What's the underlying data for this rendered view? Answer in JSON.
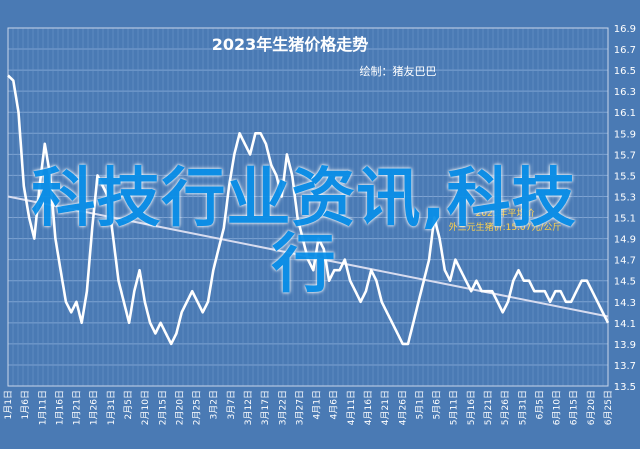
{
  "chart_data": {
    "type": "line",
    "title": "2023年生猪价格走势",
    "subtitle": "绘制：猪友巴巴",
    "xlabel": "",
    "ylabel": "",
    "ylim": [
      13.5,
      16.9
    ],
    "yticks": [
      "16.9",
      "16.7",
      "16.5",
      "16.3",
      "16.1",
      "15.9",
      "15.7",
      "15.5",
      "15.3",
      "15.1",
      "14.9",
      "14.7",
      "14.5",
      "14.3",
      "14.1",
      "13.9",
      "13.7",
      "13.5"
    ],
    "xticks": [
      "1月1日",
      "1月6日",
      "1月11日",
      "1月16日",
      "1月21日",
      "1月26日",
      "1月31日",
      "2月5日",
      "2月10日",
      "2月15日",
      "2月20日",
      "2月25日",
      "3月2日",
      "3月7日",
      "3月12日",
      "3月17日",
      "3月22日",
      "3月27日",
      "4月1日",
      "4月6日",
      "4月11日",
      "4月16日",
      "4月21日",
      "4月26日",
      "5月1日",
      "5月6日",
      "5月11日",
      "5月16日",
      "5月21日",
      "5月26日",
      "5月31日",
      "6月5日",
      "6月10日",
      "6月15日",
      "6月20日",
      "6月25日"
    ],
    "grid": true,
    "series": [
      {
        "values": [
          16.45,
          16.4,
          16.1,
          15.4,
          15.1,
          14.9,
          15.4,
          15.8,
          15.5,
          14.9,
          14.6,
          14.3,
          14.2,
          14.3,
          14.1,
          14.4,
          15.0,
          15.5,
          15.4,
          15.3,
          14.9,
          14.5,
          14.3,
          14.1,
          14.4,
          14.6,
          14.3,
          14.1,
          14.0,
          14.1,
          14.0,
          13.9,
          14.0,
          14.2,
          14.3,
          14.4,
          14.3,
          14.2,
          14.3,
          14.6,
          14.8,
          15.0,
          15.4,
          15.7,
          15.9,
          15.8,
          15.7,
          15.9,
          15.9,
          15.8,
          15.6,
          15.5,
          15.3,
          15.7,
          15.5,
          15.1,
          14.9,
          14.7,
          14.6,
          14.9,
          14.8,
          14.5,
          14.6,
          14.6,
          14.7,
          14.5,
          14.4,
          14.3,
          14.4,
          14.6,
          14.5,
          14.3,
          14.2,
          14.1,
          14.0,
          13.9,
          13.9,
          14.1,
          14.3,
          14.5,
          14.7,
          15.1,
          14.9,
          14.6,
          14.5,
          14.7,
          14.6,
          14.5,
          14.4,
          14.5,
          14.4,
          14.4,
          14.4,
          14.3,
          14.2,
          14.3,
          14.5,
          14.6,
          14.5,
          14.5,
          14.4,
          14.4,
          14.4,
          14.3,
          14.4,
          14.4,
          14.3,
          14.3,
          14.4,
          14.5,
          14.5,
          14.4,
          14.3,
          14.2,
          14.1
        ],
        "color": "#ffffff"
      },
      {
        "values": [
          15.3,
          14.16
        ],
        "color": "#d8dcef",
        "kind": "trend"
      }
    ],
    "annotation": {
      "lines": [
        "2023年平均价",
        "外三元生猪价:15.07元/公斤"
      ],
      "color": "#ffd24a"
    }
  },
  "watermark": "科技行业资讯,科技行"
}
